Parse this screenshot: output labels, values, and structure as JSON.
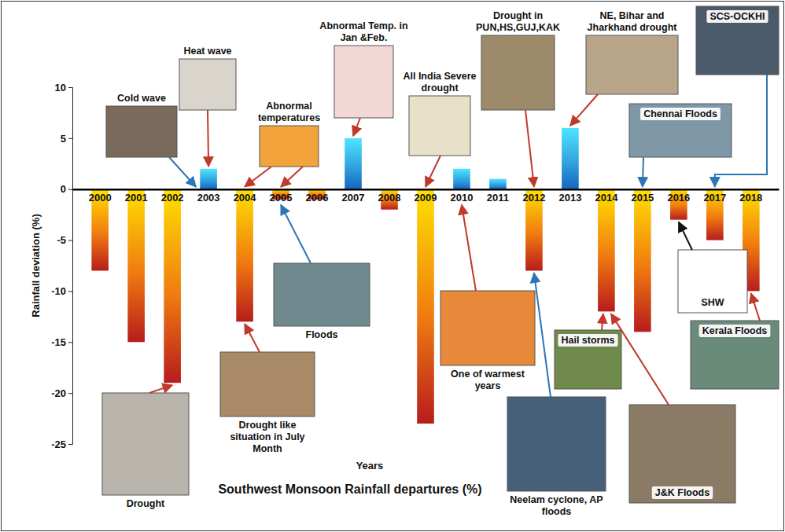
{
  "chart_data": {
    "type": "bar",
    "title": "Southwest Monsoon Rainfall departures (%)",
    "x_label": "Years",
    "y_label": "Rainfall deviation (%)",
    "categories": [
      "2000",
      "2001",
      "2002",
      "2003",
      "2004",
      "2005",
      "2006",
      "2007",
      "2008",
      "2009",
      "2010",
      "2011",
      "2012",
      "2013",
      "2014",
      "2015",
      "2016",
      "2017",
      "2018"
    ],
    "values": [
      -8,
      -15,
      -19,
      2,
      -13,
      -1,
      -1,
      5,
      -2,
      -23,
      2,
      1,
      -8,
      6,
      -12,
      -14,
      -3,
      -5,
      -10
    ],
    "colors": [
      "#b71c1c",
      "#b71c1c",
      "#b71c1c",
      "#1565c0",
      "#b71c1c",
      "#b71c1c",
      "#b71c1c",
      "#1565c0",
      "#b71c1c",
      "#b71c1c",
      "#1565c0",
      "#1565c0",
      "#b71c1c",
      "#1565c0",
      "#b71c1c",
      "#b71c1c",
      "#b71c1c",
      "#b71c1c",
      "#b71c1c"
    ],
    "ylim": [
      -25,
      10
    ],
    "yticks": [
      -25,
      -20,
      -15,
      -10,
      -5,
      0,
      5,
      10
    ],
    "grid": false,
    "annotations": [
      {
        "text": "Cold wave",
        "years": [
          "2003"
        ]
      },
      {
        "text": "Heat wave",
        "years": [
          "2003"
        ]
      },
      {
        "text": "Abnormal temperatures",
        "years": [
          "2004",
          "2005"
        ]
      },
      {
        "text": "Abnormal Temp. in Jan &Feb.",
        "years": [
          "2007"
        ]
      },
      {
        "text": "All India Severe drought",
        "years": [
          "2009"
        ]
      },
      {
        "text": "Drought in PUN,HS,GUJ,KAK",
        "years": [
          "2012"
        ]
      },
      {
        "text": "NE, Bihar and Jharkhand drought",
        "years": [
          "2013"
        ]
      },
      {
        "text": "SCS-OCKHI",
        "years": [
          "2017"
        ]
      },
      {
        "text": "Chennai Floods",
        "years": [
          "2015"
        ]
      },
      {
        "text": "Floods",
        "years": [
          "2005"
        ]
      },
      {
        "text": "Drought",
        "years": [
          "2002"
        ]
      },
      {
        "text": "Drought like situation in July Month",
        "years": [
          "2004"
        ]
      },
      {
        "text": "One of warmest years",
        "years": [
          "2010"
        ]
      },
      {
        "text": "Neelam cyclone, AP floods",
        "years": [
          "2012"
        ]
      },
      {
        "text": "Hail storms",
        "years": [
          "2014"
        ]
      },
      {
        "text": "J&K Floods",
        "years": [
          "2014"
        ]
      },
      {
        "text": "Kerala Floods",
        "years": [
          "2018"
        ]
      },
      {
        "text": "SHW",
        "years": [
          "2016"
        ]
      }
    ]
  }
}
